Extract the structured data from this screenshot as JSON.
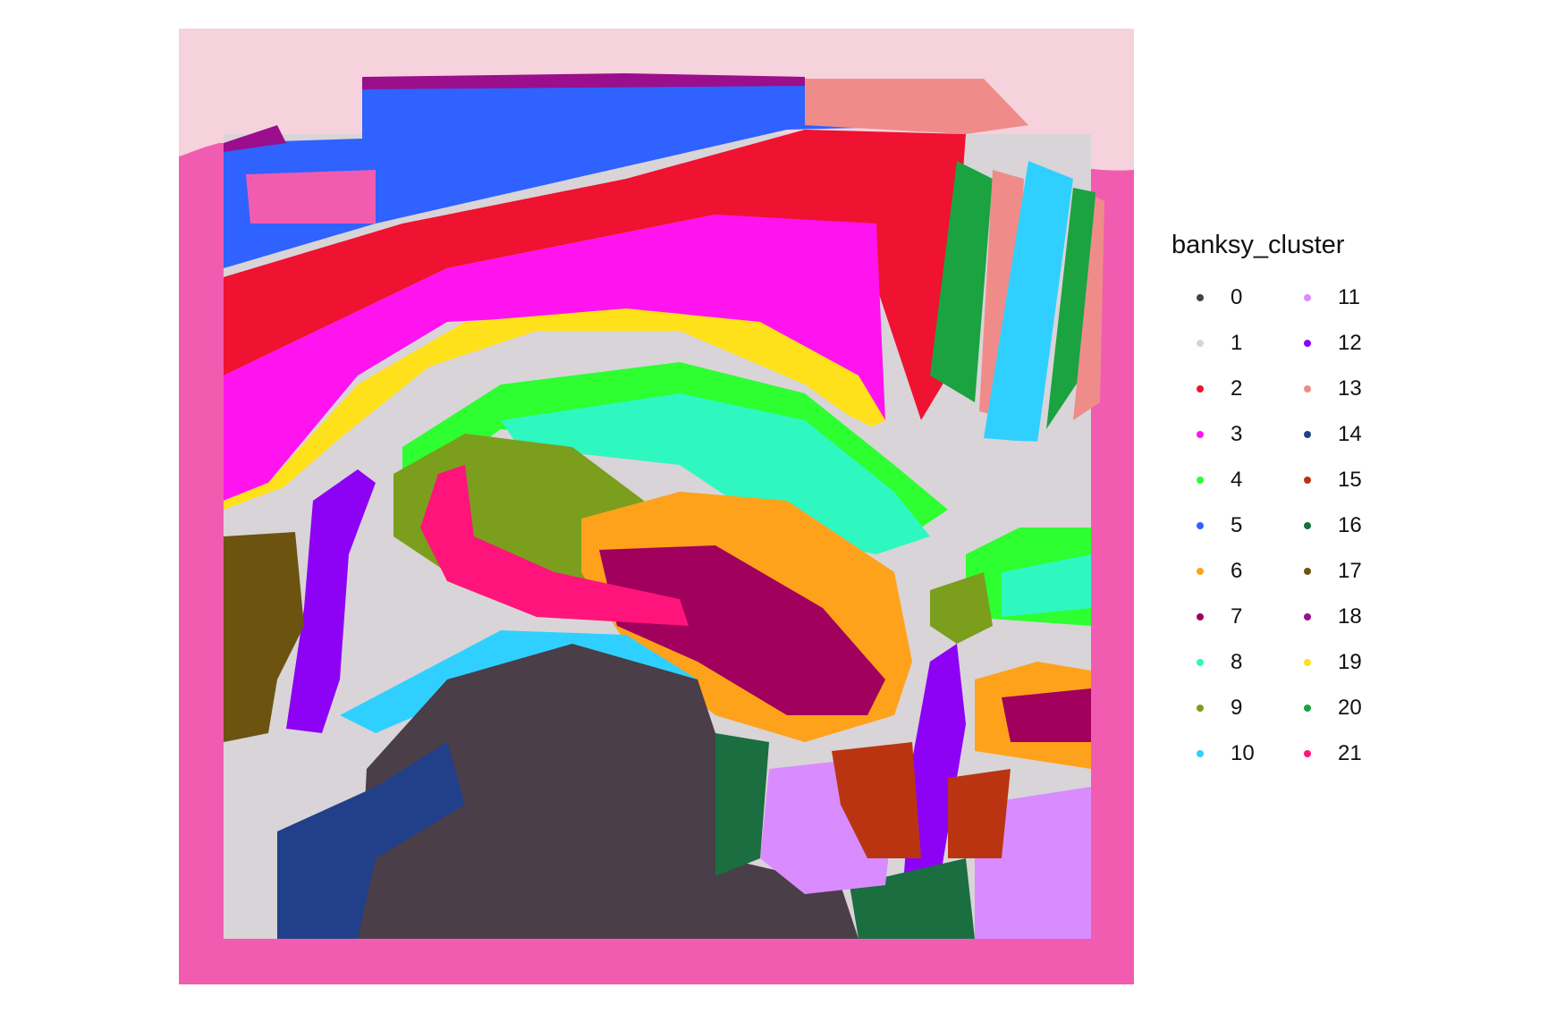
{
  "legend": {
    "title": "banksy_cluster",
    "items": [
      {
        "label": "0",
        "color": "#4a3e48"
      },
      {
        "label": "1",
        "color": "#d9d4d8"
      },
      {
        "label": "2",
        "color": "#ef1231"
      },
      {
        "label": "3",
        "color": "#ff14ef"
      },
      {
        "label": "4",
        "color": "#2dff31"
      },
      {
        "label": "5",
        "color": "#2f62ff"
      },
      {
        "label": "6",
        "color": "#ffa21b"
      },
      {
        "label": "7",
        "color": "#a1005d"
      },
      {
        "label": "8",
        "color": "#2ff7c0"
      },
      {
        "label": "9",
        "color": "#7b9e1c"
      },
      {
        "label": "10",
        "color": "#2fd0ff"
      },
      {
        "label": "11",
        "color": "#d98cff"
      },
      {
        "label": "12",
        "color": "#8d02f5"
      },
      {
        "label": "13",
        "color": "#ef8c8a"
      },
      {
        "label": "14",
        "color": "#223f8a"
      },
      {
        "label": "15",
        "color": "#bb3411"
      },
      {
        "label": "16",
        "color": "#1a6e40"
      },
      {
        "label": "17",
        "color": "#6d5310"
      },
      {
        "label": "18",
        "color": "#9b0e8c"
      },
      {
        "label": "19",
        "color": "#ffe11b"
      },
      {
        "label": "20",
        "color": "#1aa340"
      },
      {
        "label": "21",
        "color": "#ff147b"
      }
    ]
  },
  "background": {
    "tissue_pink": "#f25cb0",
    "tissue_light": "#f6d2dd"
  }
}
